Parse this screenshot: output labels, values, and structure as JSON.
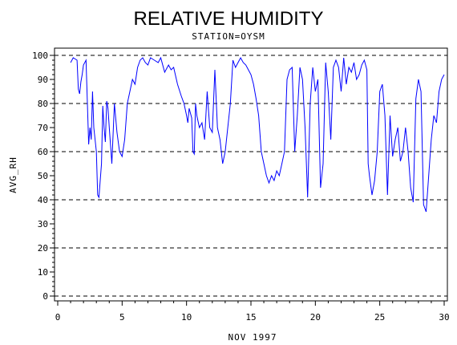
{
  "chart_data": {
    "type": "line",
    "title": "RELATIVE HUMIDITY",
    "subtitle": "STATION=OYSM",
    "xlabel": "NOV 1997",
    "ylabel": "AVG_RH",
    "xlim": [
      0,
      30
    ],
    "ylim": [
      0,
      100
    ],
    "x_ticks": [
      0,
      5,
      10,
      15,
      20,
      25,
      30
    ],
    "y_ticks": [
      0,
      10,
      20,
      30,
      40,
      50,
      60,
      70,
      80,
      90,
      100
    ],
    "reference_lines": [
      0,
      20,
      40,
      60,
      80,
      100
    ],
    "grid": false,
    "legend": "none",
    "series": [
      {
        "color": "#0000ff",
        "x": [
          1.0,
          1.2,
          1.5,
          1.6,
          1.7,
          1.8,
          1.9,
          2.0,
          2.2,
          2.4,
          2.5,
          2.6,
          2.7,
          2.8,
          3.0,
          3.1,
          3.2,
          3.4,
          3.5,
          3.6,
          3.7,
          3.8,
          3.9,
          4.0,
          4.2,
          4.4,
          4.6,
          4.8,
          5.0,
          5.2,
          5.4,
          5.6,
          5.8,
          6.0,
          6.2,
          6.4,
          6.6,
          6.8,
          7.0,
          7.2,
          7.5,
          7.8,
          8.0,
          8.3,
          8.6,
          8.8,
          9.0,
          9.3,
          9.6,
          9.8,
          10.0,
          10.1,
          10.2,
          10.4,
          10.5,
          10.6,
          10.7,
          10.8,
          11.0,
          11.2,
          11.4,
          11.6,
          11.8,
          12.0,
          12.2,
          12.4,
          12.6,
          12.8,
          13.0,
          13.2,
          13.4,
          13.6,
          13.8,
          14.0,
          14.2,
          14.4,
          14.6,
          14.8,
          15.0,
          15.2,
          15.4,
          15.6,
          15.8,
          16.0,
          16.2,
          16.4,
          16.6,
          16.8,
          17.0,
          17.2,
          17.4,
          17.6,
          17.8,
          18.0,
          18.2,
          18.4,
          18.6,
          18.8,
          19.0,
          19.2,
          19.4,
          19.6,
          19.8,
          20.0,
          20.2,
          20.4,
          20.6,
          20.8,
          21.0,
          21.2,
          21.4,
          21.6,
          21.8,
          22.0,
          22.2,
          22.4,
          22.6,
          22.8,
          23.0,
          23.2,
          23.4,
          23.6,
          23.8,
          24.0,
          24.1,
          24.2,
          24.4,
          24.6,
          24.8,
          25.0,
          25.2,
          25.4,
          25.6,
          25.8,
          26.0,
          26.2,
          26.4,
          26.6,
          26.8,
          27.0,
          27.2,
          27.4,
          27.6,
          27.8,
          28.0,
          28.2,
          28.4,
          28.6,
          28.8,
          29.0,
          29.2,
          29.4,
          29.6,
          29.8,
          30.0
        ],
        "y": [
          97,
          99,
          98,
          86,
          84,
          89,
          92,
          96,
          98,
          63,
          70,
          65,
          85,
          70,
          60,
          42,
          41,
          55,
          79,
          70,
          64,
          81,
          78,
          70,
          55,
          80,
          68,
          60,
          58,
          65,
          80,
          85,
          90,
          88,
          95,
          98,
          99,
          97,
          96,
          99,
          98,
          97,
          99,
          93,
          96,
          94,
          95,
          88,
          83,
          80,
          75,
          72,
          78,
          74,
          60,
          59,
          80,
          75,
          70,
          72,
          65,
          85,
          70,
          68,
          94,
          70,
          65,
          55,
          60,
          70,
          80,
          98,
          95,
          97,
          99,
          97,
          96,
          94,
          92,
          88,
          82,
          75,
          60,
          55,
          50,
          47,
          50,
          48,
          52,
          50,
          55,
          60,
          90,
          94,
          95,
          60,
          75,
          95,
          90,
          70,
          41,
          80,
          95,
          85,
          90,
          45,
          55,
          97,
          85,
          65,
          95,
          98,
          95,
          85,
          99,
          88,
          95,
          93,
          97,
          90,
          92,
          96,
          98,
          94,
          55,
          50,
          42,
          48,
          60,
          85,
          88,
          75,
          42,
          75,
          58,
          65,
          70,
          56,
          60,
          70,
          60,
          45,
          39,
          82,
          90,
          85,
          38,
          35,
          50,
          65,
          75,
          72,
          85,
          90,
          92
        ]
      }
    ]
  }
}
